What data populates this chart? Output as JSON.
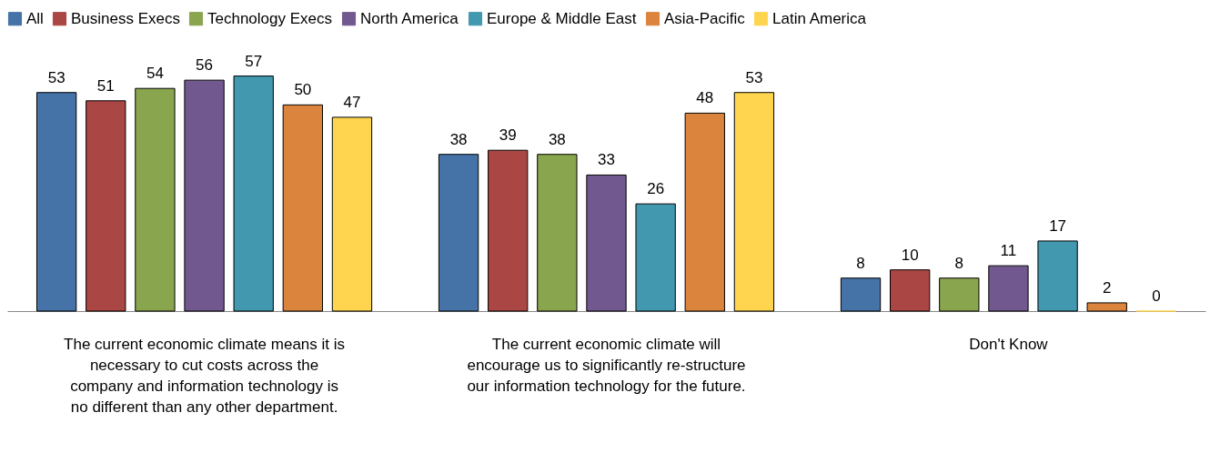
{
  "chart_data": {
    "type": "bar",
    "categories": [
      "The current economic climate means it is necessary to cut costs across the company and information technology is no different than any other department.",
      "The current economic climate will encourage us to significantly re-structure our information technology for the future.",
      "Don't Know"
    ],
    "series": [
      {
        "name": "All",
        "color": "#4572a7",
        "values": [
          53,
          38,
          8
        ]
      },
      {
        "name": "Business Execs",
        "color": "#aa4643",
        "values": [
          51,
          39,
          10
        ]
      },
      {
        "name": "Technology Execs",
        "color": "#89a54e",
        "values": [
          54,
          38,
          8
        ]
      },
      {
        "name": "North America",
        "color": "#71588f",
        "values": [
          56,
          33,
          11
        ]
      },
      {
        "name": "Europe & Middle East",
        "color": "#4198af",
        "values": [
          57,
          26,
          17
        ]
      },
      {
        "name": "Asia-Pacific",
        "color": "#db843d",
        "values": [
          50,
          48,
          2
        ]
      },
      {
        "name": "Latin America",
        "color": "#ffd54f",
        "values": [
          47,
          53,
          0
        ]
      }
    ],
    "data_labels": true,
    "legend": "top",
    "grid": false
  }
}
